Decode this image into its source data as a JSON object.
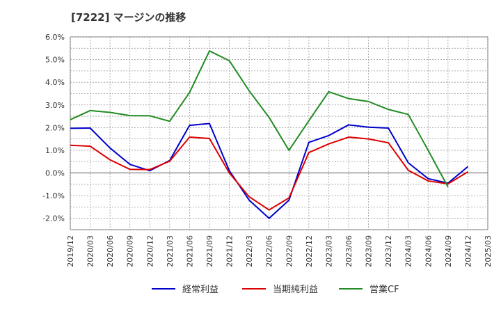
{
  "chart_data": {
    "type": "line",
    "title": "[7222]  マージンの推移",
    "xlabel": "",
    "ylabel": "",
    "ylim": [
      -2.5,
      6.0
    ],
    "yticks": [
      6.0,
      5.0,
      4.0,
      3.0,
      2.0,
      1.0,
      0.0,
      -1.0,
      -2.0
    ],
    "ytick_labels": [
      "6.0%",
      "5.0%",
      "4.0%",
      "3.0%",
      "2.0%",
      "1.0%",
      "0.0%",
      "-1.0%",
      "-2.0%"
    ],
    "xtick_labels": [
      "2019/12",
      "2020/03",
      "2020/06",
      "2020/09",
      "2020/12",
      "2021/03",
      "2021/06",
      "2021/09",
      "2021/12",
      "2022/03",
      "2022/06",
      "2022/09",
      "2022/12",
      "2023/03",
      "2023/06",
      "2023/09",
      "2023/12",
      "2024/03",
      "2024/06",
      "2024/09",
      "2024/12",
      "2025/03"
    ],
    "x": [
      "2019/12",
      "2020/03",
      "2020/06",
      "2020/09",
      "2020/12",
      "2021/03",
      "2021/06",
      "2021/09",
      "2021/12",
      "2022/03",
      "2022/06",
      "2022/09",
      "2022/12",
      "2023/03",
      "2023/06",
      "2023/09",
      "2023/12",
      "2024/03",
      "2024/06",
      "2024/09",
      "2024/12"
    ],
    "grid": true,
    "legend_position": "bottom",
    "series": [
      {
        "name": "経常利益",
        "color": "#0000cc",
        "values": [
          1.97,
          1.98,
          1.1,
          0.38,
          0.1,
          0.55,
          2.1,
          2.18,
          0.1,
          -1.2,
          -2.0,
          -1.2,
          1.35,
          1.65,
          2.12,
          2.02,
          1.98,
          0.45,
          -0.25,
          -0.45,
          0.28
        ]
      },
      {
        "name": "当期純利益",
        "color": "#dd0000",
        "values": [
          1.22,
          1.18,
          0.58,
          0.16,
          0.15,
          0.52,
          1.58,
          1.52,
          0.0,
          -1.05,
          -1.63,
          -1.1,
          0.9,
          1.28,
          1.58,
          1.5,
          1.33,
          0.12,
          -0.35,
          -0.48,
          0.05
        ]
      },
      {
        "name": "営業CF",
        "color": "#228b22",
        "values": [
          2.35,
          2.75,
          2.67,
          2.53,
          2.52,
          2.28,
          3.55,
          5.38,
          4.95,
          3.62,
          2.45,
          1.0,
          2.3,
          3.58,
          3.28,
          3.15,
          2.8,
          2.58,
          1.0,
          -0.62,
          null
        ]
      }
    ]
  }
}
